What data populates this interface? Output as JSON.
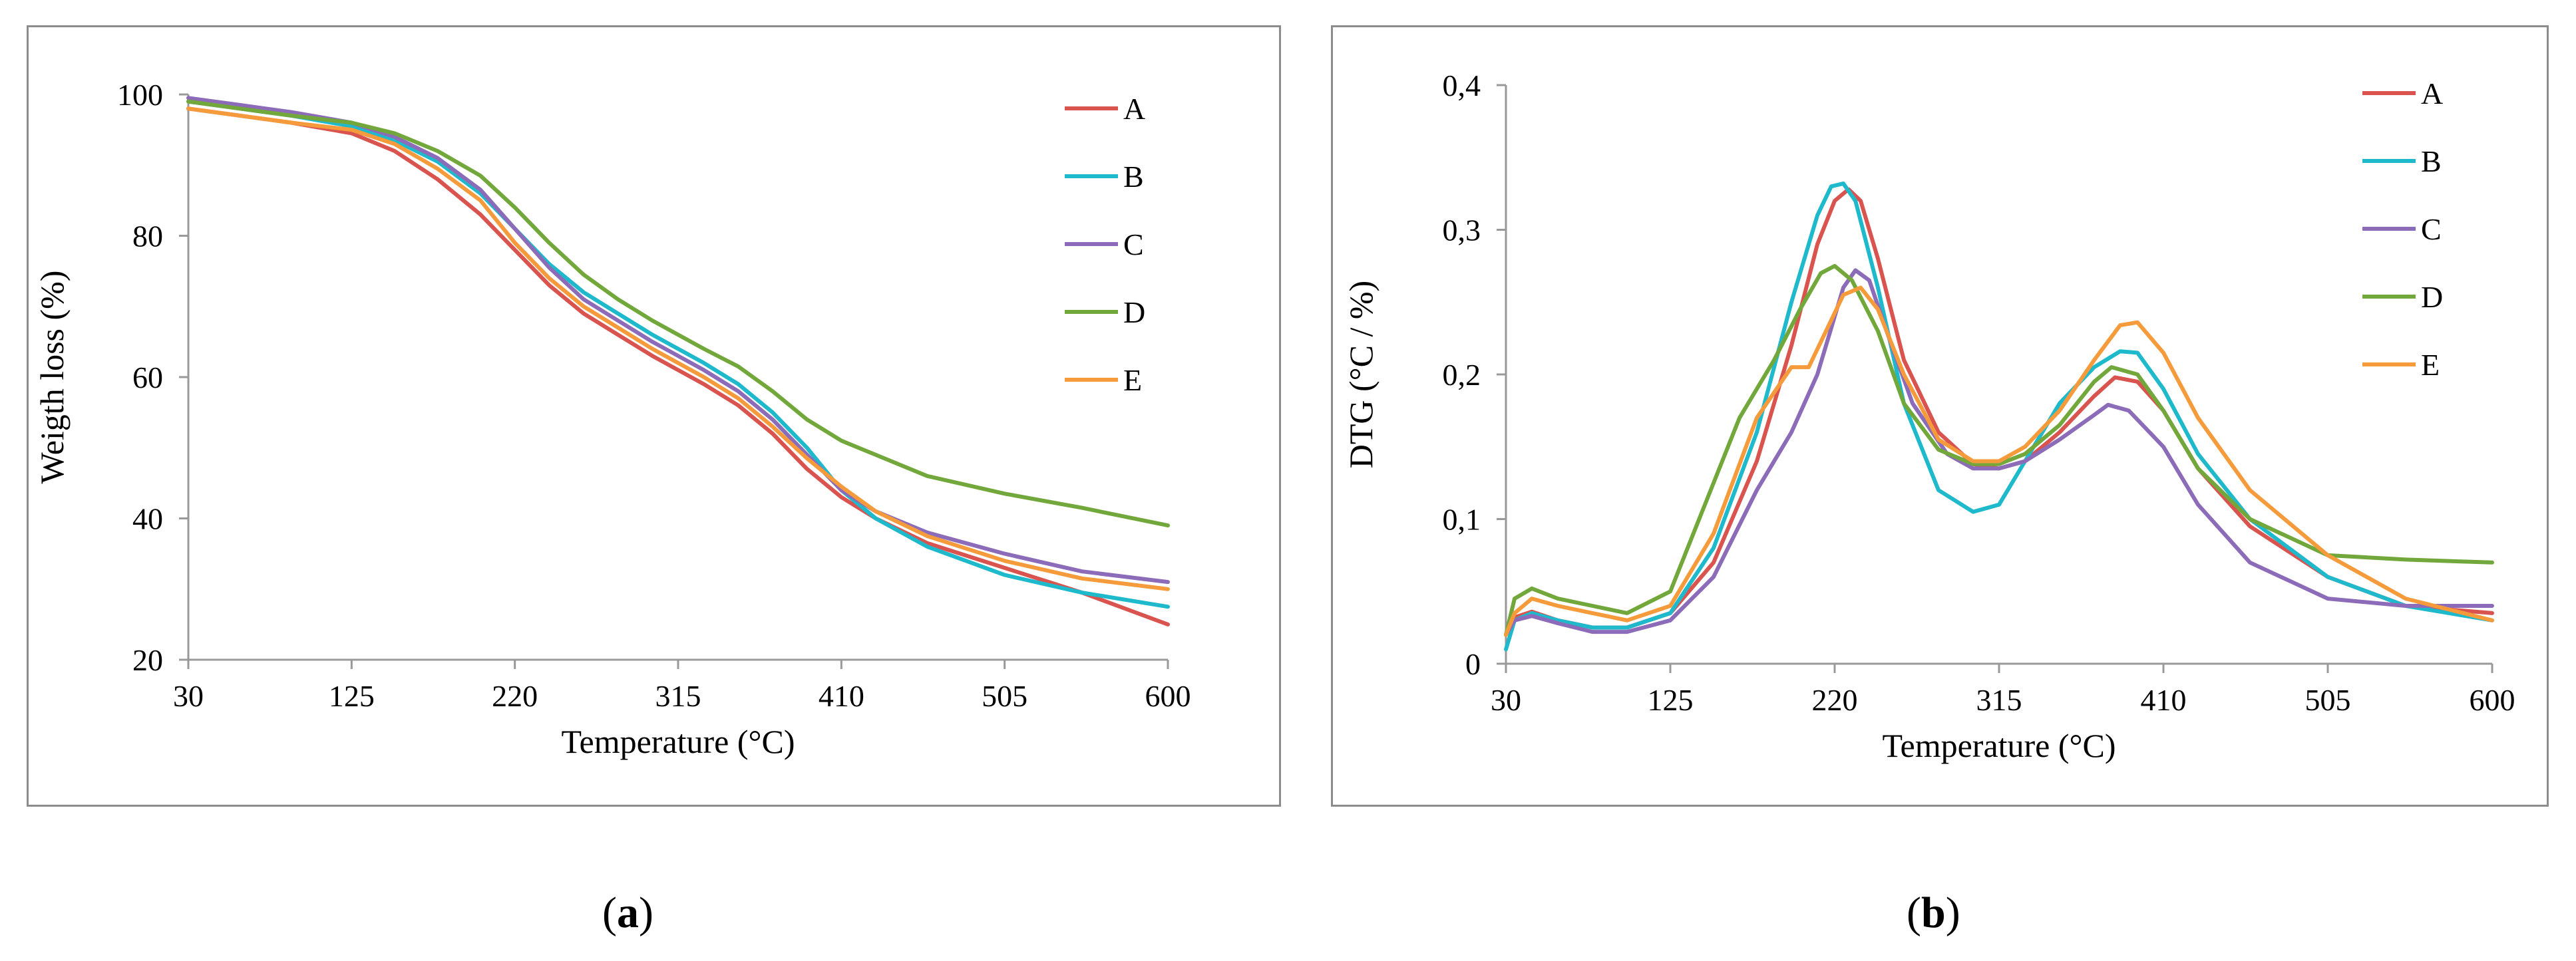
{
  "colors": {
    "A": "#d9534f",
    "B": "#1fb9cc",
    "C": "#8c6bb8",
    "D": "#72a83b",
    "E": "#f59b3c"
  },
  "panels": [
    {
      "label_open": "(",
      "label_letter": "a",
      "label_close": ")"
    },
    {
      "label_open": "(",
      "label_letter": "b",
      "label_close": ")"
    }
  ],
  "chart_data": [
    {
      "type": "line",
      "xlabel": "Temperature (°C)",
      "ylabel": "Weigth loss (%)",
      "xlim": [
        30,
        600
      ],
      "ylim": [
        20,
        100
      ],
      "xticks": [
        "30",
        "125",
        "220",
        "315",
        "410",
        "505",
        "600"
      ],
      "yticks": [
        "20",
        "40",
        "60",
        "80",
        "100"
      ],
      "legend": "right",
      "series": [
        {
          "name": "A",
          "x": [
            30,
            60,
            90,
            125,
            150,
            175,
            200,
            220,
            240,
            260,
            280,
            300,
            315,
            330,
            350,
            370,
            390,
            410,
            430,
            460,
            505,
            550,
            600
          ],
          "y": [
            98,
            97,
            96,
            94.5,
            92,
            88,
            83,
            78,
            73,
            69,
            66,
            63,
            61,
            59,
            56,
            52,
            47,
            43,
            40,
            36.5,
            33,
            29.5,
            25
          ]
        },
        {
          "name": "B",
          "x": [
            30,
            60,
            90,
            125,
            150,
            175,
            200,
            220,
            240,
            260,
            280,
            300,
            315,
            330,
            350,
            370,
            390,
            410,
            430,
            460,
            505,
            550,
            600
          ],
          "y": [
            99,
            98,
            97,
            95.5,
            93.5,
            90.5,
            86,
            81,
            76,
            72,
            69,
            66,
            64,
            62,
            59,
            55,
            50,
            44,
            40,
            36,
            32,
            29.5,
            27.5
          ]
        },
        {
          "name": "C",
          "x": [
            30,
            60,
            90,
            125,
            150,
            175,
            200,
            220,
            240,
            260,
            280,
            300,
            315,
            330,
            350,
            370,
            390,
            410,
            430,
            460,
            505,
            550,
            600
          ],
          "y": [
            99.5,
            98.5,
            97.5,
            96,
            94,
            91,
            86.5,
            81,
            75.5,
            71,
            68,
            65,
            63,
            61,
            58,
            54,
            49,
            44,
            41,
            38,
            35,
            32.5,
            31
          ]
        },
        {
          "name": "D",
          "x": [
            30,
            60,
            90,
            125,
            150,
            175,
            200,
            220,
            240,
            260,
            280,
            300,
            315,
            330,
            350,
            370,
            390,
            410,
            430,
            460,
            505,
            550,
            600
          ],
          "y": [
            99,
            98,
            97,
            96,
            94.5,
            92,
            88.5,
            84,
            79,
            74.5,
            71,
            68,
            66,
            64,
            61.5,
            58,
            54,
            51,
            49,
            46,
            43.5,
            41.5,
            39
          ]
        },
        {
          "name": "E",
          "x": [
            30,
            60,
            90,
            125,
            150,
            175,
            200,
            220,
            240,
            260,
            280,
            300,
            315,
            330,
            350,
            370,
            390,
            410,
            430,
            460,
            505,
            550,
            600
          ],
          "y": [
            98,
            97,
            96,
            95,
            93,
            89.5,
            85,
            79,
            74,
            70,
            67,
            64,
            62,
            60,
            57,
            53,
            48.5,
            44.5,
            41,
            37.5,
            34,
            31.5,
            30
          ]
        }
      ]
    },
    {
      "type": "line",
      "xlabel": "Temperature (°C)",
      "ylabel": "DTG (°C / %)",
      "xlim": [
        30,
        600
      ],
      "ylim": [
        0,
        0.4
      ],
      "xticks": [
        "30",
        "125",
        "220",
        "315",
        "410",
        "505",
        "600"
      ],
      "yticks": [
        "0",
        "0,1",
        "0,2",
        "0,3",
        "0,4"
      ],
      "legend": "right",
      "series": [
        {
          "name": "A",
          "x": [
            30,
            35,
            45,
            60,
            80,
            100,
            125,
            150,
            175,
            195,
            210,
            220,
            228,
            235,
            245,
            260,
            280,
            300,
            315,
            330,
            350,
            370,
            382,
            395,
            410,
            430,
            460,
            505,
            550,
            600
          ],
          "y": [
            0.02,
            0.032,
            0.036,
            0.03,
            0.025,
            0.025,
            0.035,
            0.07,
            0.14,
            0.22,
            0.29,
            0.32,
            0.328,
            0.32,
            0.28,
            0.21,
            0.16,
            0.138,
            0.135,
            0.14,
            0.16,
            0.185,
            0.198,
            0.195,
            0.175,
            0.135,
            0.095,
            0.06,
            0.04,
            0.035
          ]
        },
        {
          "name": "B",
          "x": [
            30,
            35,
            45,
            60,
            80,
            100,
            125,
            150,
            175,
            195,
            210,
            218,
            225,
            232,
            245,
            260,
            280,
            300,
            315,
            330,
            350,
            370,
            385,
            395,
            410,
            430,
            460,
            505,
            550,
            600
          ],
          "y": [
            0.01,
            0.03,
            0.035,
            0.03,
            0.025,
            0.025,
            0.035,
            0.08,
            0.16,
            0.25,
            0.31,
            0.33,
            0.332,
            0.32,
            0.26,
            0.18,
            0.12,
            0.105,
            0.11,
            0.14,
            0.18,
            0.205,
            0.216,
            0.215,
            0.19,
            0.145,
            0.1,
            0.06,
            0.04,
            0.03
          ]
        },
        {
          "name": "C",
          "x": [
            30,
            35,
            45,
            60,
            80,
            100,
            125,
            150,
            175,
            195,
            210,
            225,
            232,
            240,
            250,
            265,
            285,
            300,
            315,
            330,
            350,
            370,
            378,
            390,
            410,
            430,
            460,
            505,
            550,
            600
          ],
          "y": [
            0.02,
            0.03,
            0.033,
            0.028,
            0.022,
            0.022,
            0.03,
            0.06,
            0.12,
            0.16,
            0.2,
            0.26,
            0.272,
            0.265,
            0.23,
            0.18,
            0.145,
            0.135,
            0.135,
            0.14,
            0.155,
            0.172,
            0.179,
            0.175,
            0.15,
            0.11,
            0.07,
            0.045,
            0.04,
            0.04
          ]
        },
        {
          "name": "D",
          "x": [
            30,
            35,
            45,
            60,
            80,
            100,
            125,
            145,
            165,
            185,
            200,
            212,
            220,
            230,
            245,
            260,
            280,
            300,
            315,
            330,
            350,
            370,
            380,
            395,
            410,
            430,
            460,
            505,
            550,
            600
          ],
          "y": [
            0.02,
            0.045,
            0.052,
            0.045,
            0.04,
            0.035,
            0.05,
            0.11,
            0.17,
            0.21,
            0.245,
            0.27,
            0.275,
            0.265,
            0.23,
            0.18,
            0.148,
            0.138,
            0.138,
            0.145,
            0.165,
            0.195,
            0.205,
            0.2,
            0.175,
            0.135,
            0.1,
            0.075,
            0.072,
            0.07
          ]
        },
        {
          "name": "E",
          "x": [
            30,
            35,
            45,
            60,
            80,
            100,
            125,
            150,
            175,
            195,
            205,
            215,
            225,
            235,
            245,
            260,
            280,
            300,
            315,
            330,
            350,
            370,
            385,
            395,
            410,
            430,
            460,
            505,
            550,
            600
          ],
          "y": [
            0.02,
            0.035,
            0.045,
            0.04,
            0.035,
            0.03,
            0.04,
            0.09,
            0.17,
            0.205,
            0.205,
            0.23,
            0.255,
            0.26,
            0.245,
            0.2,
            0.155,
            0.14,
            0.14,
            0.15,
            0.175,
            0.21,
            0.234,
            0.236,
            0.215,
            0.17,
            0.12,
            0.075,
            0.045,
            0.03
          ]
        }
      ]
    }
  ]
}
